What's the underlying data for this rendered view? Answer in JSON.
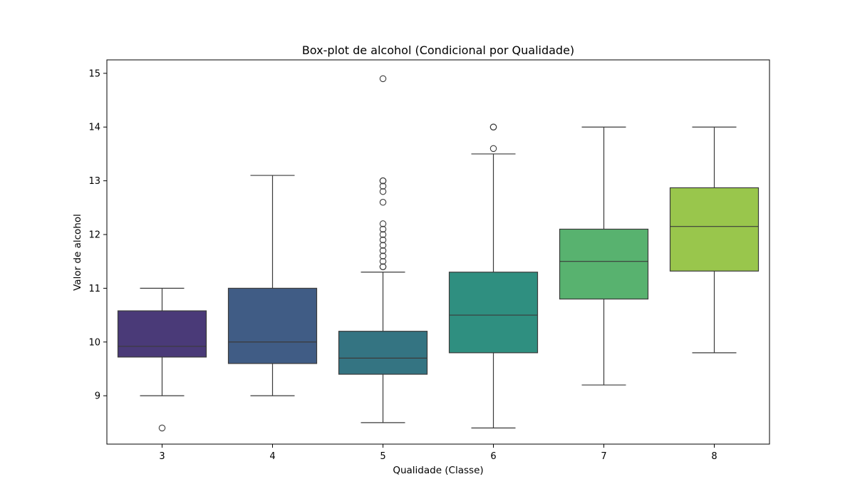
{
  "chart_data": {
    "type": "box",
    "title": "Box-plot de alcohol (Condicional por Qualidade)",
    "xlabel": "Qualidade (Classe)",
    "ylabel": "Valor de alcohol",
    "categories": [
      "3",
      "4",
      "5",
      "6",
      "7",
      "8"
    ],
    "ylim": [
      8.1,
      15.25
    ],
    "yticks": [
      9,
      10,
      11,
      12,
      13,
      14,
      15
    ],
    "grid": false,
    "palette": "viridis",
    "boxes": [
      {
        "category": "3",
        "whisker_low": 9.0,
        "q1": 9.72,
        "median": 9.92,
        "q3": 10.58,
        "whisker_high": 11.0,
        "color": "#4a3a78",
        "outliers": [
          8.4
        ]
      },
      {
        "category": "4",
        "whisker_low": 9.0,
        "q1": 9.6,
        "median": 10.0,
        "q3": 11.0,
        "whisker_high": 13.1,
        "color": "#405c85",
        "outliers": []
      },
      {
        "category": "5",
        "whisker_low": 8.5,
        "q1": 9.4,
        "median": 9.7,
        "q3": 10.2,
        "whisker_high": 11.3,
        "color": "#347482",
        "outliers": [
          11.4,
          11.4,
          11.5,
          11.6,
          11.7,
          11.8,
          11.9,
          12.0,
          12.1,
          12.2,
          12.6,
          12.8,
          12.9,
          13.0,
          13.0,
          14.9
        ]
      },
      {
        "category": "6",
        "whisker_low": 8.4,
        "q1": 9.8,
        "median": 10.5,
        "q3": 11.3,
        "whisker_high": 13.5,
        "color": "#2f8f80",
        "outliers": [
          13.6,
          14.0,
          14.0
        ]
      },
      {
        "category": "7",
        "whisker_low": 9.2,
        "q1": 10.8,
        "median": 11.5,
        "q3": 12.1,
        "whisker_high": 14.0,
        "color": "#58b26f",
        "outliers": []
      },
      {
        "category": "8",
        "whisker_low": 9.8,
        "q1": 11.32,
        "median": 12.15,
        "q3": 12.87,
        "whisker_high": 14.0,
        "color": "#99c64c",
        "outliers": []
      }
    ]
  }
}
